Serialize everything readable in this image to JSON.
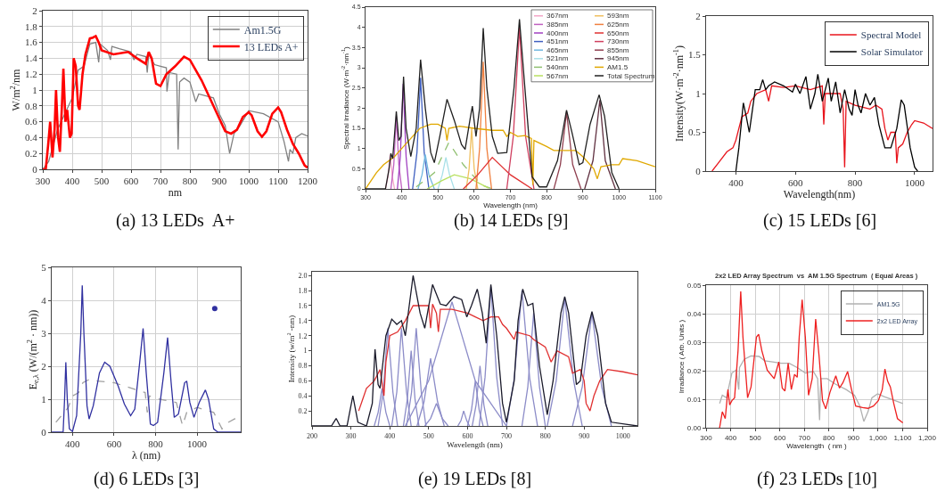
{
  "chart_data": [
    {
      "type": "line",
      "xlabel": "nm",
      "ylabel": "W/m$^{2}$/nm",
      "xlim": [
        300,
        1200
      ],
      "ylim": [
        0,
        2
      ],
      "xticks": [
        300,
        400,
        500,
        600,
        700,
        800,
        900,
        1000,
        1100,
        1200
      ],
      "yticks": [
        0,
        0.2,
        0.4,
        0.6,
        0.8,
        1,
        1.2,
        1.4,
        1.6,
        1.8,
        2
      ],
      "grid": true,
      "legend": "top right",
      "annotations": [
        "(a) 13 LEDs  A+"
      ],
      "series": [
        {
          "name": "Am1.5G",
          "color": "#808080",
          "x": [
            300,
            320,
            350,
            400,
            420,
            440,
            460,
            480,
            490,
            495,
            520,
            530,
            535,
            560,
            600,
            610,
            620,
            650,
            655,
            660,
            680,
            700,
            720,
            722,
            730,
            755,
            760,
            765,
            780,
            800,
            820,
            830,
            880,
            900,
            920,
            935,
            950,
            970,
            1000,
            1050,
            1100,
            1120,
            1135,
            1140,
            1150,
            1160,
            1180,
            1200
          ],
          "values": [
            0,
            0.1,
            0.5,
            0.9,
            1.25,
            1.3,
            1.58,
            1.6,
            1.35,
            1.58,
            1.5,
            1.38,
            1.55,
            1.52,
            1.48,
            1.38,
            1.45,
            1.42,
            1.22,
            1.45,
            1.32,
            1.3,
            1.28,
            0.98,
            1.22,
            1.2,
            0.25,
            1.1,
            1.15,
            1.1,
            0.85,
            0.95,
            0.9,
            0.7,
            0.55,
            0.2,
            0.45,
            0.55,
            0.74,
            0.7,
            0.6,
            0.35,
            0.1,
            0.25,
            0.2,
            0.4,
            0.45,
            0.42
          ]
        },
        {
          "name": "13 LEDs A+",
          "color": "#ff0000",
          "x": [
            300,
            310,
            318,
            325,
            333,
            340,
            345,
            352,
            358,
            365,
            370,
            377,
            383,
            392,
            398,
            405,
            412,
            420,
            425,
            435,
            445,
            460,
            470,
            480,
            490,
            500,
            540,
            590,
            620,
            650,
            660,
            670,
            685,
            700,
            720,
            750,
            780,
            800,
            840,
            880,
            920,
            940,
            960,
            980,
            1000,
            1010,
            1030,
            1045,
            1060,
            1080,
            1100,
            1110,
            1130,
            1150,
            1170,
            1190,
            1200
          ],
          "values": [
            0,
            0,
            0.3,
            0.6,
            0.15,
            0.5,
            1.0,
            0.4,
            0.22,
            0.8,
            1.27,
            0.6,
            0.75,
            0.4,
            0.45,
            1.4,
            1.3,
            0.8,
            0.75,
            1.2,
            1.45,
            1.65,
            1.66,
            1.68,
            1.6,
            1.5,
            1.45,
            1.48,
            1.4,
            1.33,
            1.48,
            1.4,
            1.08,
            1.05,
            1.2,
            1.3,
            1.42,
            1.38,
            1.12,
            0.8,
            0.48,
            0.45,
            0.5,
            0.66,
            0.72,
            0.68,
            0.48,
            0.41,
            0.48,
            0.7,
            0.78,
            0.72,
            0.5,
            0.32,
            0.2,
            0.05,
            0.02
          ]
        }
      ]
    },
    {
      "type": "line",
      "xlabel": "Wavelength (nm)",
      "ylabel": "Spectral Irradiance (W·m$^{-2}$·nm$^{-1}$)",
      "xlim": [
        300,
        1100
      ],
      "ylim": [
        0,
        4.5
      ],
      "xticks": [
        300,
        400,
        500,
        600,
        700,
        800,
        900,
        1000,
        1100
      ],
      "yticks": [
        0,
        0.5,
        1,
        1.5,
        2,
        2.5,
        3,
        3.5,
        4,
        4.5
      ],
      "grid": false,
      "legend": "top right",
      "annotations": [
        "(b) 14 LEDs [9]"
      ],
      "series": [
        {
          "name": "367nm",
          "color": "#f4a6c8",
          "x": [
            355,
            362,
            368,
            374,
            380
          ],
          "values": [
            0,
            0.3,
            0.85,
            0.3,
            0
          ]
        },
        {
          "name": "385nm",
          "color": "#c060c0",
          "x": [
            370,
            378,
            385,
            392,
            400
          ],
          "values": [
            0,
            0.6,
            1.8,
            0.6,
            0
          ]
        },
        {
          "name": "400nm",
          "color": "#a040c0",
          "x": [
            388,
            396,
            404,
            412,
            420
          ],
          "values": [
            0,
            0.8,
            2.6,
            0.8,
            0
          ]
        },
        {
          "name": "451nm",
          "color": "#4060c0",
          "x": [
            430,
            442,
            452,
            462,
            475
          ],
          "values": [
            0,
            0.9,
            2.75,
            0.9,
            0
          ]
        },
        {
          "name": "465nm",
          "color": "#70b8e0",
          "x": [
            445,
            456,
            465,
            475,
            490
          ],
          "values": [
            0,
            0.35,
            0.85,
            0.35,
            0
          ]
        },
        {
          "name": "521nm",
          "color": "#a8e0e8",
          "x": [
            500,
            512,
            522,
            532,
            545
          ],
          "values": [
            0,
            0.35,
            0.78,
            0.35,
            0
          ]
        },
        {
          "name": "540nm",
          "color": "#90c070",
          "line_style": "dashed",
          "x": [
            440,
            490,
            530,
            570,
            620,
            650
          ],
          "values": [
            0.05,
            0.4,
            1.15,
            0.6,
            0.1,
            0
          ]
        },
        {
          "name": "567nm",
          "color": "#b8e060",
          "x": [
            470,
            510,
            545,
            590,
            640
          ],
          "values": [
            0,
            0.2,
            0.35,
            0.25,
            0.02
          ]
        },
        {
          "name": "593nm",
          "color": "#f0c060",
          "x": [
            578,
            586,
            593,
            600,
            610
          ],
          "values": [
            0,
            0.5,
            1.5,
            0.5,
            0
          ]
        },
        {
          "name": "625nm",
          "color": "#f08040",
          "x": [
            605,
            615,
            625,
            635,
            648
          ],
          "values": [
            0,
            1.0,
            3.15,
            1.0,
            0
          ]
        },
        {
          "name": "650nm",
          "color": "#e03030",
          "x": [
            570,
            610,
            650,
            700,
            760
          ],
          "values": [
            0,
            0.35,
            0.78,
            0.35,
            0
          ]
        },
        {
          "name": "730nm",
          "color": "#d04060",
          "x": [
            690,
            708,
            725,
            742,
            765
          ],
          "values": [
            0,
            1.3,
            4.0,
            1.3,
            0
          ]
        },
        {
          "name": "855nm",
          "color": "#904050",
          "x": [
            820,
            838,
            855,
            872,
            895
          ],
          "values": [
            0,
            0.6,
            1.9,
            0.6,
            0
          ]
        },
        {
          "name": "945nm",
          "color": "#603040",
          "x": [
            905,
            928,
            947,
            962,
            990
          ],
          "values": [
            0,
            0.7,
            2.2,
            0.7,
            0
          ]
        },
        {
          "name": "AM1.5",
          "color": "#e0a800",
          "x": [
            300,
            330,
            350,
            380,
            400,
            420,
            450,
            480,
            500,
            520,
            525,
            530,
            560,
            600,
            650,
            680,
            690,
            700,
            720,
            740,
            758,
            762,
            765,
            800,
            820,
            880,
            900,
            930,
            940,
            950,
            980,
            1000,
            1010,
            1050,
            1100
          ],
          "values": [
            0,
            0.4,
            0.6,
            0.8,
            1.0,
            1.2,
            1.5,
            1.6,
            1.6,
            1.5,
            1.2,
            1.5,
            1.55,
            1.5,
            1.45,
            1.45,
            1.3,
            1.4,
            1.3,
            1.32,
            1.25,
            0.1,
            1.2,
            1.05,
            0.95,
            0.95,
            0.8,
            0.5,
            0.25,
            0.55,
            0.6,
            0.6,
            0.75,
            0.7,
            0.55
          ]
        },
        {
          "name": "Total Spectrum",
          "color": "#202020",
          "x": [
            300,
            355,
            365,
            370,
            375,
            385,
            392,
            398,
            405,
            412,
            425,
            440,
            452,
            465,
            480,
            490,
            505,
            525,
            545,
            565,
            575,
            590,
            595,
            605,
            615,
            625,
            635,
            650,
            665,
            690,
            710,
            725,
            740,
            760,
            780,
            800,
            830,
            855,
            870,
            890,
            900,
            920,
            945,
            960,
            980,
            1000
          ],
          "values": [
            0,
            0,
            0.5,
            0.88,
            0.75,
            1.92,
            1.2,
            1.3,
            2.78,
            1.5,
            0.8,
            1.5,
            3.2,
            2.0,
            0.9,
            0.65,
            1.3,
            2.22,
            1.7,
            1.1,
            0.98,
            1.8,
            2.05,
            1.3,
            2.0,
            3.98,
            2.5,
            1.3,
            0.88,
            0.9,
            2.5,
            4.2,
            2.5,
            0.3,
            0.05,
            0.05,
            0.7,
            1.95,
            1.4,
            0.6,
            0.65,
            1.6,
            2.33,
            1.8,
            0.4,
            0
          ]
        }
      ]
    },
    {
      "type": "line",
      "xlabel": "Wavelength(nm)",
      "ylabel": "Intensity(W·m$^{-2}$·nm$^{-1}$)",
      "xlim": [
        300,
        1060
      ],
      "ylim": [
        0,
        2
      ],
      "xticks": [
        400,
        600,
        800,
        1000
      ],
      "yticks": [
        0,
        0.5,
        1,
        1.5,
        2
      ],
      "grid": false,
      "legend": "top right",
      "annotations": [
        "(c) 15 LEDs [6]"
      ],
      "series": [
        {
          "name": "Spectral Model",
          "color": "#e8141c",
          "x": [
            320,
            340,
            370,
            390,
            400,
            410,
            420,
            440,
            450,
            470,
            500,
            510,
            520,
            560,
            600,
            650,
            690,
            695,
            700,
            750,
            760,
            765,
            770,
            800,
            850,
            870,
            890,
            900,
            910,
            920,
            935,
            940,
            945,
            960,
            975,
            990,
            1000,
            1030,
            1060
          ],
          "values": [
            0,
            0.1,
            0.25,
            0.3,
            0.4,
            0.55,
            0.7,
            0.75,
            0.9,
            1.0,
            1.05,
            0.9,
            1.1,
            1.08,
            1.1,
            1.05,
            1.1,
            0.6,
            1.0,
            1.0,
            0.8,
            0.05,
            0.9,
            0.85,
            0.8,
            0.85,
            0.8,
            0.55,
            0.4,
            0.5,
            0.5,
            0.1,
            0.3,
            0.35,
            0.5,
            0.6,
            0.65,
            0.62,
            0.55
          ]
        },
        {
          "name": "Solar Simulator",
          "color": "#000000",
          "x": [
            400,
            410,
            425,
            435,
            445,
            465,
            480,
            490,
            500,
            510,
            530,
            560,
            590,
            600,
            615,
            635,
            650,
            665,
            675,
            690,
            710,
            720,
            735,
            750,
            765,
            780,
            790,
            800,
            810,
            820,
            835,
            850,
            865,
            880,
            900,
            920,
            940,
            955,
            965,
            985,
            1000,
            1010
          ],
          "values": [
            0,
            0.3,
            0.88,
            0.7,
            0.5,
            1.05,
            1.05,
            1.18,
            1.05,
            1.1,
            1.15,
            1.1,
            1.02,
            1.12,
            1.0,
            1.22,
            0.8,
            1.0,
            1.25,
            0.9,
            1.2,
            0.9,
            1.15,
            0.75,
            1.05,
            0.8,
            0.72,
            1.05,
            0.85,
            0.75,
            1.0,
            0.85,
            0.95,
            0.6,
            0.3,
            0.3,
            0.55,
            0.92,
            0.85,
            0.3,
            0.05,
            0
          ]
        }
      ]
    },
    {
      "type": "line",
      "xlabel": "λ (nm)",
      "ylabel": "E$_{e,λ}$ (W/(m$^{2}$ · nm))",
      "xlim": [
        300,
        1210
      ],
      "ylim": [
        0,
        5
      ],
      "xticks": [
        400,
        600,
        800,
        1000
      ],
      "yticks": [
        0,
        1,
        2,
        3,
        4,
        5
      ],
      "grid": true,
      "annotations": [
        "(d) 6 LEDs [3]"
      ],
      "series": [
        {
          "color": "#a0a0a0",
          "line_style": "dashed",
          "x": [
            320,
            360,
            380,
            400,
            430,
            450,
            480,
            520,
            600,
            650,
            700,
            750,
            760,
            770,
            820,
            900,
            930,
            950,
            1000,
            1080,
            1120,
            1150,
            1180,
            1210
          ],
          "values": [
            0.3,
            0.6,
            0.75,
            1.1,
            1.2,
            1.5,
            1.6,
            1.55,
            1.5,
            1.4,
            1.3,
            1.2,
            0.6,
            1.1,
            1.0,
            0.9,
            0.2,
            0.6,
            0.75,
            0.6,
            0.1,
            0.3,
            0.4,
            0.45
          ]
        },
        {
          "color": "#3030a0",
          "x": [
            300,
            355,
            362,
            368,
            375,
            385,
            400,
            420,
            440,
            447,
            455,
            470,
            480,
            500,
            530,
            555,
            580,
            620,
            650,
            680,
            700,
            725,
            740,
            755,
            775,
            790,
            810,
            840,
            858,
            875,
            890,
            910,
            940,
            950,
            965,
            985,
            1010,
            1040,
            1055,
            1080,
            1100,
            1210
          ],
          "values": [
            0,
            0,
            1.0,
            2.12,
            1.0,
            0.1,
            0.02,
            0.5,
            3.0,
            4.45,
            3.0,
            0.8,
            0.4,
            0.8,
            1.8,
            2.12,
            2.0,
            1.4,
            0.85,
            0.5,
            0.7,
            2.2,
            3.15,
            1.8,
            0.25,
            0.2,
            0.3,
            1.8,
            2.87,
            1.5,
            0.45,
            0.55,
            1.5,
            1.55,
            0.9,
            0.45,
            0.9,
            1.28,
            1.0,
            0.1,
            0,
            0
          ]
        },
        {
          "type": "scatter",
          "color": "#3030a0",
          "x": [
            1085
          ],
          "values": [
            3.75
          ]
        }
      ]
    },
    {
      "type": "line",
      "xlabel": "Wavelength (nm)",
      "ylabel": "Intensity (w/m$^{2}$ -nm)",
      "xlim": [
        200,
        1037
      ],
      "ylim": [
        0,
        2.05
      ],
      "xticks": [
        200,
        300,
        400,
        500,
        600,
        700,
        800,
        900,
        1000
      ],
      "yticks": [
        0.2,
        0.4,
        0.6,
        0.8,
        1,
        1.2,
        1.4,
        1.6,
        1.8,
        {
          "value": 2,
          "label": "2.0"
        }
      ],
      "grid": false,
      "annotations": [
        "(e) 19 LEDs [8]"
      ],
      "series": [
        {
          "color": "#8c8cc8",
          "x": [
            360,
            370,
            380,
            390,
            400
          ],
          "values": [
            0,
            0.18,
            0.5,
            0.18,
            0
          ]
        },
        {
          "color": "#8c8cc8",
          "x": [
            370,
            383,
            395,
            408,
            420
          ],
          "values": [
            0,
            0.45,
            1.3,
            0.45,
            0
          ]
        },
        {
          "color": "#8c8cc8",
          "x": [
            405,
            418,
            430,
            443,
            455
          ],
          "values": [
            0,
            0.45,
            1.3,
            0.45,
            0
          ]
        },
        {
          "color": "#8c8cc8",
          "x": [
            435,
            445,
            455,
            465,
            475
          ],
          "values": [
            0,
            0.35,
            1.0,
            0.35,
            0
          ]
        },
        {
          "color": "#8c8cc8",
          "x": [
            443,
            456,
            468,
            481,
            493
          ],
          "values": [
            0,
            0.45,
            1.3,
            0.45,
            0
          ]
        },
        {
          "color": "#8c8cc8",
          "x": [
            470,
            488,
            505,
            523,
            540
          ],
          "values": [
            0,
            0.32,
            0.9,
            0.32,
            0
          ]
        },
        {
          "color": "#8c8cc8",
          "x": [
            490,
            505,
            520,
            535,
            550
          ],
          "values": [
            0,
            0.1,
            0.3,
            0.1,
            0
          ]
        },
        {
          "color": "#8c8cc8",
          "x": [
            440,
            500,
            560,
            620,
            700
          ],
          "values": [
            0,
            0.6,
            1.65,
            0.6,
            0
          ]
        },
        {
          "color": "#8c8cc8",
          "x": [
            575,
            583,
            590,
            598,
            605
          ],
          "values": [
            0,
            0.07,
            0.2,
            0.07,
            0
          ]
        },
        {
          "color": "#8c8cc8",
          "x": [
            600,
            610,
            620,
            630,
            640
          ],
          "values": [
            0,
            0.21,
            0.6,
            0.21,
            0
          ]
        },
        {
          "color": "#8c8cc8",
          "x": [
            612,
            622,
            632,
            642,
            652
          ],
          "values": [
            0,
            0.28,
            0.8,
            0.28,
            0
          ]
        },
        {
          "color": "#8c8cc8",
          "x": [
            630,
            645,
            660,
            675,
            690
          ],
          "values": [
            0,
            0.65,
            1.85,
            0.65,
            0
          ]
        },
        {
          "color": "#8c8cc8",
          "x": [
            700,
            720,
            740,
            760,
            780
          ],
          "values": [
            0,
            0.63,
            1.8,
            0.63,
            0
          ]
        },
        {
          "color": "#8c8cc8",
          "x": [
            740,
            755,
            770,
            785,
            800
          ],
          "values": [
            0,
            0.52,
            1.5,
            0.52,
            0
          ]
        },
        {
          "color": "#8c8cc8",
          "x": [
            805,
            828,
            850,
            873,
            895
          ],
          "values": [
            0,
            0.6,
            1.7,
            0.6,
            0
          ]
        },
        {
          "color": "#8c8cc8",
          "x": [
            870,
            895,
            920,
            945,
            970
          ],
          "values": [
            0,
            0.52,
            1.5,
            0.52,
            0
          ]
        },
        {
          "color": "#e03030",
          "x": [
            320,
            330,
            340,
            360,
            375,
            385,
            390,
            400,
            420,
            440,
            460,
            480,
            500,
            505,
            510,
            520,
            525,
            530,
            560,
            600,
            620,
            640,
            660,
            680,
            690,
            700,
            720,
            725,
            760,
            770,
            800,
            815,
            830,
            860,
            870,
            890,
            900,
            905,
            915,
            925,
            940,
            960,
            1000,
            1037
          ],
          "values": [
            0.2,
            0.35,
            0.5,
            0.6,
            0.75,
            0.4,
            0.85,
            1.2,
            1.25,
            1.4,
            1.6,
            1.6,
            1.6,
            1.3,
            1.62,
            1.5,
            1.25,
            1.55,
            1.55,
            1.5,
            1.45,
            1.4,
            1.45,
            1.45,
            1.35,
            1.3,
            1.15,
            1.25,
            1.2,
            1.15,
            1.05,
            0.85,
            1.0,
            0.92,
            0.7,
            0.75,
            0.6,
            0.3,
            0.2,
            0.4,
            0.6,
            0.75,
            0.72,
            0.68
          ]
        },
        {
          "color": "#1a1a2a",
          "x": [
            200,
            250,
            262,
            272,
            290,
            305,
            318,
            340,
            355,
            362,
            370,
            375,
            390,
            405,
            418,
            430,
            440,
            460,
            478,
            490,
            510,
            530,
            545,
            565,
            585,
            598,
            610,
            625,
            638,
            648,
            660,
            675,
            690,
            700,
            720,
            730,
            742,
            755,
            768,
            785,
            805,
            820,
            840,
            850,
            860,
            880,
            890,
            905,
            920,
            935,
            955,
            970,
            1037
          ],
          "values": [
            0,
            0,
            0.1,
            0,
            0,
            0.4,
            0.05,
            0,
            0.3,
            1.02,
            0.55,
            0.5,
            1.2,
            1.42,
            1.35,
            1.4,
            1.2,
            2.0,
            1.5,
            1.3,
            1.88,
            1.62,
            1.6,
            1.72,
            1.68,
            1.45,
            1.6,
            1.82,
            1.5,
            1.1,
            1.88,
            1.2,
            0.3,
            0.05,
            0.6,
            1.4,
            1.82,
            1.6,
            1.63,
            0.8,
            0.15,
            0.6,
            1.5,
            1.72,
            1.5,
            0.55,
            0.6,
            1.2,
            1.52,
            1.2,
            0.3,
            0.05,
            0
          ]
        }
      ]
    },
    {
      "type": "line",
      "title": "2x2 LED Array Spectrum  vs  AM 1.5G Spectrum  ( Equal Areas )",
      "xlabel": "Wavelength  ( nm )",
      "ylabel": "Irradiance ( Arb. Units )",
      "xlim": [
        300,
        1200
      ],
      "ylim": [
        0,
        0.05
      ],
      "xticks": [
        300,
        400,
        500,
        600,
        700,
        800,
        900,
        {
          "value": 1000,
          "label": "1,000"
        },
        {
          "value": 1100,
          "label": "1,100"
        },
        {
          "value": 1200,
          "label": "1,200"
        }
      ],
      "yticks": [
        {
          "value": 0,
          "label": "0.00"
        },
        {
          "value": 0.01,
          "label": "0.01"
        },
        {
          "value": 0.02,
          "label": "0.02"
        },
        {
          "value": 0.03,
          "label": "0.03"
        },
        {
          "value": 0.04,
          "label": "0.04"
        },
        {
          "value": 0.05,
          "label": "0.05"
        }
      ],
      "grid": true,
      "legend": "top right",
      "annotations": [
        "(f) 23 LEDs [10]"
      ],
      "series": [
        {
          "name": "AM1.5G",
          "color": "#b0b0b0",
          "x": [
            355,
            366,
            383,
            405,
            422,
            433,
            436,
            455,
            483,
            516,
            538,
            571,
            605,
            638,
            671,
            704,
            737,
            754,
            762,
            767,
            793,
            826,
            870,
            904,
            926,
            942,
            959,
            975,
            998,
            1025,
            1070,
            1101
          ],
          "values": [
            0.0085,
            0.0114,
            0.0105,
            0.0192,
            0.0202,
            0.0134,
            0.0211,
            0.024,
            0.0252,
            0.025,
            0.0235,
            0.0231,
            0.0226,
            0.0226,
            0.0211,
            0.0192,
            0.0197,
            0.0172,
            0.0027,
            0.0172,
            0.0172,
            0.0153,
            0.0134,
            0.0114,
            0.0076,
            0.0022,
            0.0056,
            0.0105,
            0.0119,
            0.0109,
            0.0095,
            0.0085
          ]
        },
        {
          "name": "2x2 LED Array",
          "color": "#ee2020",
          "x": [
            355,
            366,
            378,
            389,
            396,
            405,
            416,
            430,
            441,
            450,
            469,
            483,
            505,
            514,
            527,
            549,
            577,
            596,
            610,
            621,
            634,
            647,
            660,
            671,
            679,
            691,
            704,
            717,
            732,
            746,
            760,
            774,
            787,
            804,
            828,
            843,
            857,
            876,
            892,
            909,
            937,
            959,
            981,
            1001,
            1017,
            1028,
            1039,
            1050,
            1064,
            1079,
            1101
          ],
          "values": [
            0,
            0.0056,
            0.0032,
            0.0134,
            0.008,
            0.0095,
            0.0105,
            0.027,
            0.0478,
            0.0318,
            0.0105,
            0.0143,
            0.0318,
            0.0328,
            0.027,
            0.0202,
            0.0172,
            0.0231,
            0.0139,
            0.0129,
            0.0226,
            0.0134,
            0.0187,
            0.0177,
            0.0318,
            0.0449,
            0.0318,
            0.0114,
            0.0172,
            0.0381,
            0.025,
            0.0095,
            0.0066,
            0.0124,
            0.0182,
            0.0139,
            0.0158,
            0.0197,
            0.0134,
            0.0076,
            0.0071,
            0.0068,
            0.0076,
            0.0095,
            0.0134,
            0.0206,
            0.0163,
            0.0143,
            0.0085,
            0.0032,
            0.0017
          ]
        }
      ]
    }
  ]
}
